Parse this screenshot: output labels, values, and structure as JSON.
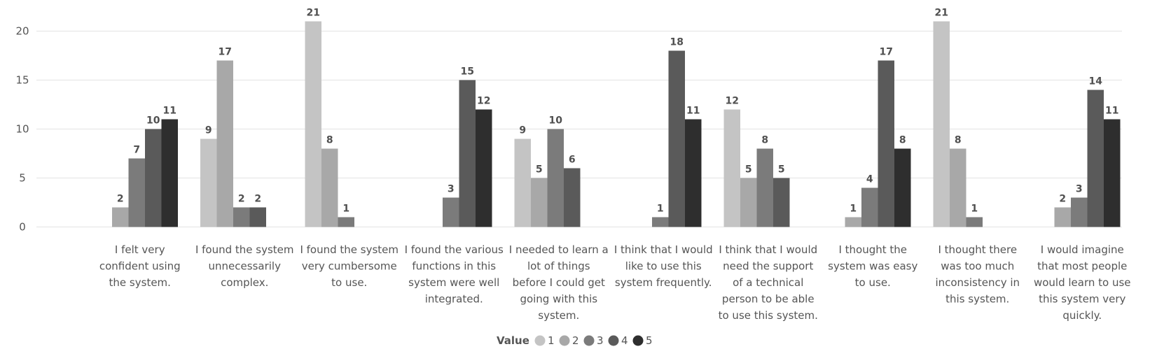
{
  "chart_data": {
    "type": "bar",
    "categories": [
      "I felt very confident using the system.",
      "I found the system unnecessarily complex.",
      "I found the system very cumbersome to use.",
      "I found the various functions in this system were well integrated.",
      "I needed to learn a lot of things before I could get going with this system.",
      "I think that I would like to use this system frequently.",
      "I think that I would need the support of a technical person to be able to use this system.",
      "I thought the system was easy to use.",
      "I thought there was too much inconsistency in this system.",
      "I would imagine that most people would learn to use this system very quickly."
    ],
    "category_lines": [
      [
        "I felt very",
        "confident using",
        "the system."
      ],
      [
        "I found the system",
        "unnecessarily",
        "complex."
      ],
      [
        "I found the system",
        "very cumbersome",
        "to use."
      ],
      [
        "I found the various",
        "functions in this",
        "system were well",
        "integrated."
      ],
      [
        "I needed to learn a",
        "lot of things",
        "before I could get",
        "going with this",
        "system."
      ],
      [
        "I think that I would",
        "like to use this",
        "system frequently."
      ],
      [
        "I think that I would",
        "need the support",
        "of a technical",
        "person to be able",
        "to use this system."
      ],
      [
        "I thought the",
        "system was easy",
        "to use."
      ],
      [
        "I thought there",
        "was too much",
        "inconsistency in",
        "this system."
      ],
      [
        "I would imagine",
        "that most people",
        "would learn to use",
        "this system very",
        "quickly."
      ]
    ],
    "series": [
      {
        "name": "1",
        "color": "#c4c4c4",
        "values": [
          null,
          9,
          21,
          null,
          9,
          null,
          12,
          null,
          21,
          null
        ]
      },
      {
        "name": "2",
        "color": "#a8a8a8",
        "values": [
          2,
          17,
          8,
          null,
          5,
          null,
          5,
          1,
          8,
          2
        ]
      },
      {
        "name": "3",
        "color": "#7b7b7b",
        "values": [
          7,
          2,
          1,
          3,
          10,
          1,
          8,
          4,
          1,
          3
        ]
      },
      {
        "name": "4",
        "color": "#5a5a5a",
        "values": [
          10,
          2,
          null,
          15,
          6,
          18,
          5,
          17,
          null,
          14
        ]
      },
      {
        "name": "5",
        "color": "#2e2e2e",
        "values": [
          11,
          null,
          null,
          12,
          null,
          11,
          null,
          8,
          null,
          11
        ]
      }
    ],
    "yticks": [
      0,
      5,
      10,
      15,
      20
    ],
    "ylim": [
      0,
      21
    ],
    "grid": true,
    "legend": {
      "title": "Value",
      "position": "bottom-center"
    }
  }
}
